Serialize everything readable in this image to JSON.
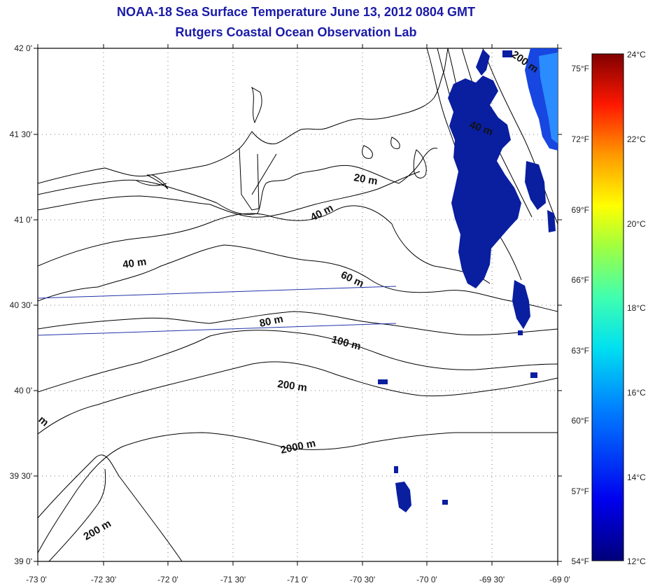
{
  "title": "NOAA-18 Sea Surface Temperature June 13, 2012 0804 GMT",
  "subtitle": "Rutgers Coastal Ocean Observation Lab",
  "map": {
    "lat_ticks": [
      "42 0'",
      "41 30'",
      "41 0'",
      "40 30'",
      "40 0'",
      "39 30'",
      "39 0'"
    ],
    "lon_ticks": [
      "-73 0'",
      "-72 30'",
      "-72 0'",
      "-71 30'",
      "-71 0'",
      "-70 30'",
      "-70 0'",
      "-69 30'",
      "-69 0'"
    ],
    "isobath_labels": [
      "20 m",
      "40 m",
      "40 m",
      "40 m",
      "60 m",
      "80 m",
      "100 m",
      "200 m",
      "200 m",
      "2000 m",
      "200 m",
      "m"
    ],
    "colors": {
      "land": "#ffffff",
      "cold_water": "#0a1ea0",
      "contour": "#000000",
      "track_line": "#2233aa"
    }
  },
  "colorbar": {
    "celsius_labels": [
      "24°C",
      "22°C",
      "20°C",
      "18°C",
      "16°C",
      "14°C",
      "12°C"
    ],
    "fahrenheit_labels": [
      "75°F",
      "72°F",
      "69°F",
      "66°F",
      "63°F",
      "60°F",
      "57°F",
      "54°F"
    ],
    "min_c": 12,
    "max_c": 24
  }
}
